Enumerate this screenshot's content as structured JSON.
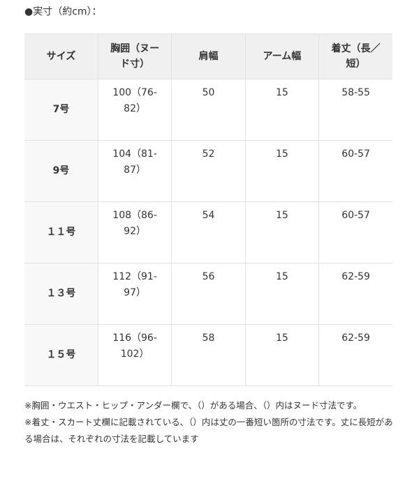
{
  "title": "●実寸（約cm）：",
  "table": {
    "headers": [
      "サイズ",
      "胸囲（ヌード寸）",
      "肩幅",
      "アーム幅",
      "着丈（長／短）"
    ],
    "rows": [
      [
        "7号",
        "100（76-82）",
        "50",
        "15",
        "58-55"
      ],
      [
        "9号",
        "104（81-87）",
        "52",
        "15",
        "60-57"
      ],
      [
        "１１号",
        "108（86-92）",
        "54",
        "15",
        "60-57"
      ],
      [
        "１３号",
        "112（91-97）",
        "56",
        "15",
        "62-59"
      ],
      [
        "１５号",
        "116（96-102）",
        "58",
        "15",
        "62-59"
      ]
    ]
  },
  "notes": [
    "※胸囲・ウエスト・ヒップ・アンダー欄で、（）がある場合、（）内はヌード寸法です。",
    "※着丈・スカート丈欄に記載されている、（）内は丈の一番短い箇所の寸法です。丈に長短がある場合は、それぞれの寸法を記載しています"
  ],
  "colors": {
    "header_bg": "#f0f0f0",
    "size_col_bg": "#f8f8f8",
    "border": "#e2e2e2",
    "text": "#333333"
  }
}
